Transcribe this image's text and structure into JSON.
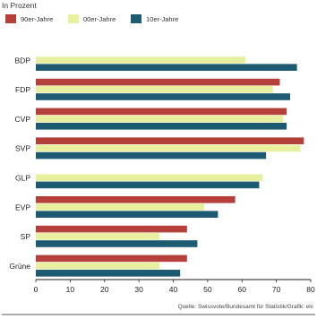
{
  "chart_data": {
    "type": "bar",
    "orientation": "horizontal",
    "unit_label": "In Prozent",
    "categories": [
      "BDP",
      "FDP",
      "CVP",
      "SVP",
      "GLP",
      "EVP",
      "SP",
      "Grüne"
    ],
    "series": [
      {
        "name": "90er-Jahre",
        "color": "#b5403a",
        "values": [
          null,
          71,
          73,
          78,
          null,
          58,
          44,
          44
        ]
      },
      {
        "name": "00er-Jahre",
        "color": "#e8f0a0",
        "values": [
          61,
          69,
          72,
          77,
          66,
          49,
          36,
          36
        ]
      },
      {
        "name": "10er-Jahre",
        "color": "#1f5a73",
        "values": [
          76,
          74,
          73,
          67,
          65,
          53,
          47,
          42
        ]
      }
    ],
    "x_ticks": [
      "0",
      "10",
      "20",
      "30",
      "40",
      "50",
      "60",
      "70",
      "80"
    ],
    "xlim": [
      0,
      80
    ],
    "legend_position": "top-left",
    "grid": false,
    "source": "Quelle: Swissvote/Bundesamt für Statistik/Grafik: elc"
  }
}
